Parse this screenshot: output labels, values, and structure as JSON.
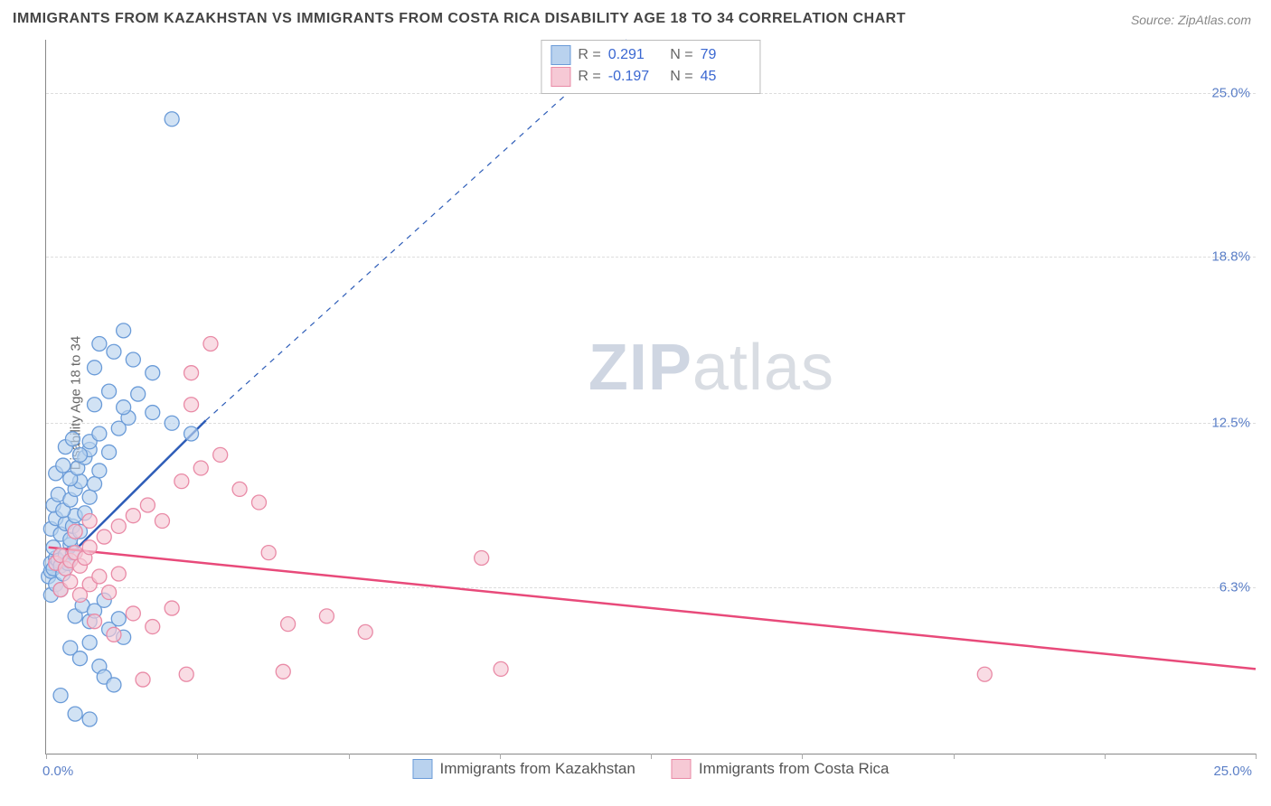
{
  "title": "IMMIGRANTS FROM KAZAKHSTAN VS IMMIGRANTS FROM COSTA RICA DISABILITY AGE 18 TO 34 CORRELATION CHART",
  "source": "Source: ZipAtlas.com",
  "ylabel": "Disability Age 18 to 34",
  "watermark_a": "ZIP",
  "watermark_b": "atlas",
  "chart": {
    "type": "scatter",
    "xlim": [
      0,
      25
    ],
    "ylim": [
      0,
      27
    ],
    "x_origin_label": "0.0%",
    "x_max_label": "25.0%",
    "yticks": [
      {
        "v": 6.3,
        "label": "6.3%"
      },
      {
        "v": 12.5,
        "label": "12.5%"
      },
      {
        "v": 18.8,
        "label": "18.8%"
      },
      {
        "v": 25.0,
        "label": "25.0%"
      }
    ],
    "xticks_minor": [
      0,
      3.125,
      6.25,
      9.375,
      12.5,
      15.625,
      18.75,
      21.875,
      25
    ],
    "background_color": "#ffffff",
    "grid_color": "#dddddd",
    "series": [
      {
        "name": "Immigrants from Kazakhstan",
        "color_fill": "#b9d2ee",
        "color_stroke": "#6a9bd8",
        "line_color": "#2e5db8",
        "r_value": "0.291",
        "n_value": "79",
        "marker_radius": 8,
        "trend": {
          "x1": 0.05,
          "y1": 6.7,
          "x2": 3.3,
          "y2": 12.6,
          "dash_x2": 12.0,
          "dash_y2": 27.0
        },
        "points": [
          [
            0.05,
            6.7
          ],
          [
            0.1,
            6.9
          ],
          [
            0.1,
            7.2
          ],
          [
            0.15,
            7.0
          ],
          [
            0.2,
            7.4
          ],
          [
            0.15,
            7.8
          ],
          [
            0.25,
            7.3
          ],
          [
            0.3,
            7.1
          ],
          [
            0.1,
            6.0
          ],
          [
            0.2,
            6.4
          ],
          [
            0.3,
            6.2
          ],
          [
            0.35,
            6.8
          ],
          [
            0.4,
            7.5
          ],
          [
            0.45,
            7.2
          ],
          [
            0.5,
            7.9
          ],
          [
            0.55,
            7.6
          ],
          [
            0.1,
            8.5
          ],
          [
            0.2,
            8.9
          ],
          [
            0.3,
            8.3
          ],
          [
            0.4,
            8.7
          ],
          [
            0.5,
            8.1
          ],
          [
            0.55,
            8.6
          ],
          [
            0.6,
            9.0
          ],
          [
            0.7,
            8.4
          ],
          [
            0.15,
            9.4
          ],
          [
            0.25,
            9.8
          ],
          [
            0.35,
            9.2
          ],
          [
            0.5,
            9.6
          ],
          [
            0.6,
            10.0
          ],
          [
            0.7,
            10.3
          ],
          [
            0.8,
            9.1
          ],
          [
            0.9,
            9.7
          ],
          [
            0.2,
            10.6
          ],
          [
            0.35,
            10.9
          ],
          [
            0.5,
            10.4
          ],
          [
            0.65,
            10.8
          ],
          [
            0.8,
            11.2
          ],
          [
            0.9,
            11.5
          ],
          [
            1.0,
            10.2
          ],
          [
            1.1,
            10.7
          ],
          [
            0.4,
            11.6
          ],
          [
            0.55,
            11.9
          ],
          [
            0.7,
            11.3
          ],
          [
            0.9,
            11.8
          ],
          [
            1.1,
            12.1
          ],
          [
            1.3,
            11.4
          ],
          [
            1.5,
            12.3
          ],
          [
            1.7,
            12.7
          ],
          [
            0.6,
            5.2
          ],
          [
            0.75,
            5.6
          ],
          [
            0.9,
            5.0
          ],
          [
            1.0,
            5.4
          ],
          [
            1.2,
            5.8
          ],
          [
            1.3,
            4.7
          ],
          [
            1.5,
            5.1
          ],
          [
            1.6,
            4.4
          ],
          [
            0.5,
            4.0
          ],
          [
            0.7,
            3.6
          ],
          [
            0.9,
            4.2
          ],
          [
            1.1,
            3.3
          ],
          [
            1.2,
            2.9
          ],
          [
            1.4,
            2.6
          ],
          [
            0.3,
            2.2
          ],
          [
            0.6,
            1.5
          ],
          [
            0.9,
            1.3
          ],
          [
            1.0,
            13.2
          ],
          [
            1.3,
            13.7
          ],
          [
            1.6,
            13.1
          ],
          [
            1.9,
            13.6
          ],
          [
            2.2,
            12.9
          ],
          [
            2.6,
            12.5
          ],
          [
            3.0,
            12.1
          ],
          [
            1.0,
            14.6
          ],
          [
            1.4,
            15.2
          ],
          [
            1.8,
            14.9
          ],
          [
            2.2,
            14.4
          ],
          [
            1.6,
            16.0
          ],
          [
            1.1,
            15.5
          ],
          [
            2.6,
            24.0
          ]
        ]
      },
      {
        "name": "Immigrants from Costa Rica",
        "color_fill": "#f6c9d5",
        "color_stroke": "#e98aa6",
        "line_color": "#e84a7a",
        "r_value": "-0.197",
        "n_value": "45",
        "marker_radius": 8,
        "trend": {
          "x1": 0.05,
          "y1": 7.8,
          "x2": 25.0,
          "y2": 3.2
        },
        "points": [
          [
            0.2,
            7.2
          ],
          [
            0.3,
            7.5
          ],
          [
            0.4,
            7.0
          ],
          [
            0.5,
            7.3
          ],
          [
            0.6,
            7.6
          ],
          [
            0.7,
            7.1
          ],
          [
            0.8,
            7.4
          ],
          [
            0.9,
            7.8
          ],
          [
            0.3,
            6.2
          ],
          [
            0.5,
            6.5
          ],
          [
            0.7,
            6.0
          ],
          [
            0.9,
            6.4
          ],
          [
            1.1,
            6.7
          ],
          [
            1.3,
            6.1
          ],
          [
            1.5,
            6.8
          ],
          [
            0.6,
            8.4
          ],
          [
            0.9,
            8.8
          ],
          [
            1.2,
            8.2
          ],
          [
            1.5,
            8.6
          ],
          [
            1.8,
            9.0
          ],
          [
            2.1,
            9.4
          ],
          [
            2.4,
            8.8
          ],
          [
            1.0,
            5.0
          ],
          [
            1.4,
            4.5
          ],
          [
            1.8,
            5.3
          ],
          [
            2.2,
            4.8
          ],
          [
            2.6,
            5.5
          ],
          [
            2.9,
            3.0
          ],
          [
            2.0,
            2.8
          ],
          [
            2.8,
            10.3
          ],
          [
            3.2,
            10.8
          ],
          [
            3.6,
            11.3
          ],
          [
            4.0,
            10.0
          ],
          [
            4.4,
            9.5
          ],
          [
            3.0,
            14.4
          ],
          [
            3.4,
            15.5
          ],
          [
            5.0,
            4.9
          ],
          [
            5.8,
            5.2
          ],
          [
            6.6,
            4.6
          ],
          [
            3.0,
            13.2
          ],
          [
            9.0,
            7.4
          ],
          [
            9.4,
            3.2
          ],
          [
            4.6,
            7.6
          ],
          [
            4.9,
            3.1
          ],
          [
            19.4,
            3.0
          ]
        ]
      }
    ]
  },
  "legend": {
    "series1_label": "Immigrants from Kazakhstan",
    "series2_label": "Immigrants from Costa Rica"
  }
}
